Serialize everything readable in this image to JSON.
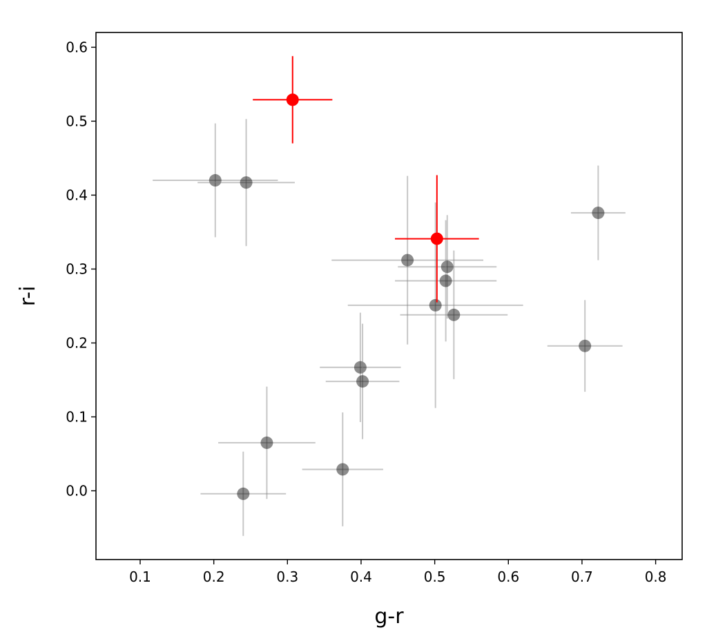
{
  "chart_data": {
    "type": "scatter",
    "title": "",
    "xlabel": "g-r",
    "ylabel": "r-i",
    "xlim": [
      0.04,
      0.836
    ],
    "ylim": [
      -0.093,
      0.62
    ],
    "xticks": [
      0.1,
      0.2,
      0.3,
      0.4,
      0.5,
      0.6,
      0.7,
      0.8
    ],
    "xtick_labels": [
      "0.1",
      "0.2",
      "0.3",
      "0.4",
      "0.5",
      "0.6",
      "0.7",
      "0.8"
    ],
    "yticks": [
      0.0,
      0.1,
      0.2,
      0.3,
      0.4,
      0.5,
      0.6
    ],
    "ytick_labels": [
      "0.0",
      "0.1",
      "0.2",
      "0.3",
      "0.4",
      "0.5",
      "0.6"
    ],
    "grid": false,
    "legend": "none",
    "series": [
      {
        "color": "#808080",
        "points": [
          {
            "x": 0.202,
            "y": 0.42,
            "xerr": 0.085,
            "yerr": 0.077
          },
          {
            "x": 0.244,
            "y": 0.417,
            "xerr": 0.066,
            "yerr": 0.086
          },
          {
            "x": 0.463,
            "y": 0.312,
            "xerr": 0.103,
            "yerr": 0.114
          },
          {
            "x": 0.517,
            "y": 0.303,
            "xerr": 0.067,
            "yerr": 0.07
          },
          {
            "x": 0.515,
            "y": 0.284,
            "xerr": 0.069,
            "yerr": 0.082
          },
          {
            "x": 0.501,
            "y": 0.251,
            "xerr": 0.119,
            "yerr": 0.139
          },
          {
            "x": 0.526,
            "y": 0.238,
            "xerr": 0.073,
            "yerr": 0.087
          },
          {
            "x": 0.722,
            "y": 0.376,
            "xerr": 0.037,
            "yerr": 0.064
          },
          {
            "x": 0.704,
            "y": 0.196,
            "xerr": 0.051,
            "yerr": 0.062
          },
          {
            "x": 0.399,
            "y": 0.167,
            "xerr": 0.055,
            "yerr": 0.074
          },
          {
            "x": 0.402,
            "y": 0.148,
            "xerr": 0.05,
            "yerr": 0.078
          },
          {
            "x": 0.272,
            "y": 0.065,
            "xerr": 0.066,
            "yerr": 0.076
          },
          {
            "x": 0.375,
            "y": 0.029,
            "xerr": 0.055,
            "yerr": 0.077
          },
          {
            "x": 0.24,
            "y": -0.004,
            "xerr": 0.058,
            "yerr": 0.057
          }
        ]
      },
      {
        "color": "#ff0000",
        "points": [
          {
            "x": 0.307,
            "y": 0.529,
            "xerr": 0.054,
            "yerr": 0.059
          },
          {
            "x": 0.503,
            "y": 0.341,
            "xerr": 0.057,
            "yerr": 0.086
          }
        ]
      }
    ]
  }
}
